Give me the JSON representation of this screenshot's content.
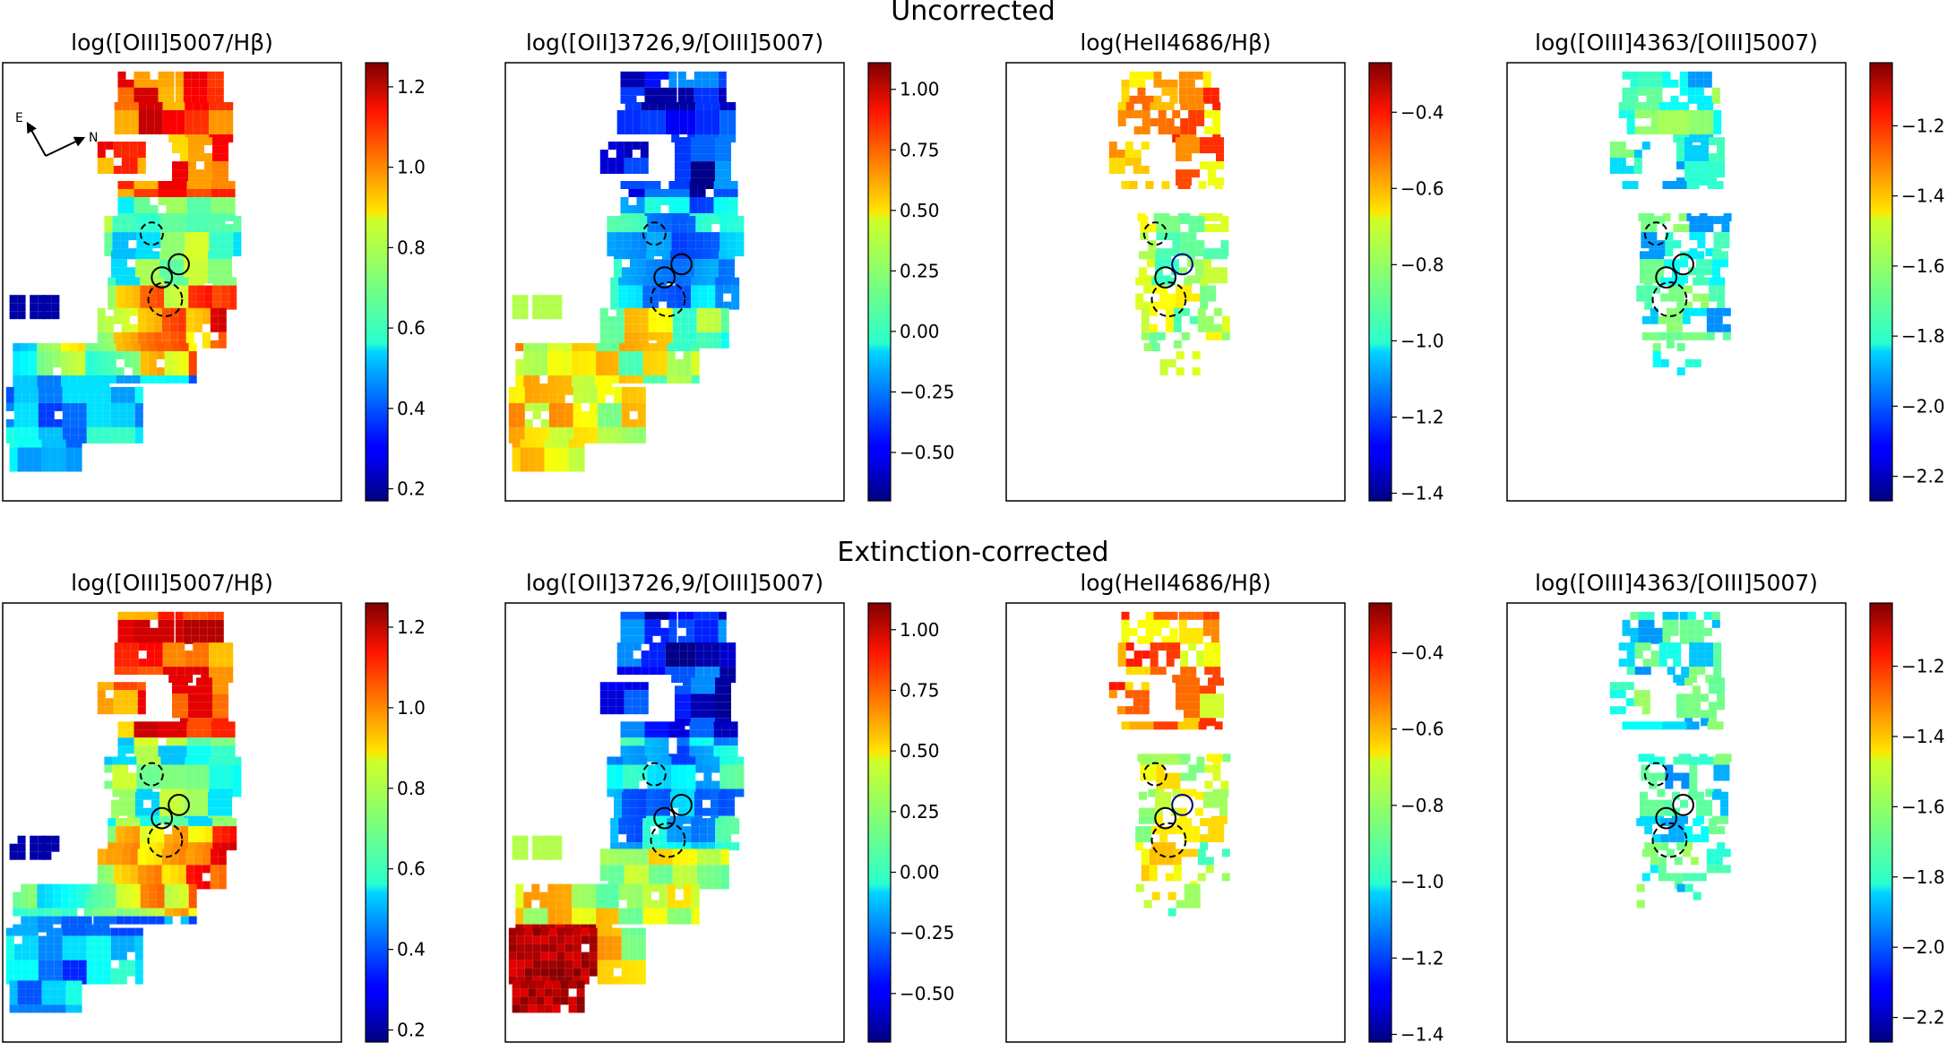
{
  "figure": {
    "rows": [
      {
        "title": "Uncorrected",
        "panels": [
          {
            "title": "log([OIII]5007/Hβ)",
            "colorbar_ticks": [
              "0.2",
              "0.4",
              "0.6",
              "0.8",
              "1.0",
              "1.2"
            ]
          },
          {
            "title": "log([OII]3726,9/[OIII]5007)",
            "colorbar_ticks": [
              "−0.50",
              "−0.25",
              "0.00",
              "0.25",
              "0.50",
              "0.75",
              "1.00"
            ]
          },
          {
            "title": "log(HeII4686/Hβ)",
            "colorbar_ticks": [
              "−1.4",
              "−1.2",
              "−1.0",
              "−0.8",
              "−0.6",
              "−0.4"
            ]
          },
          {
            "title": "log([OIII]4363/[OIII]5007)",
            "colorbar_ticks": [
              "−2.2",
              "−2.0",
              "−1.8",
              "−1.6",
              "−1.4",
              "−1.2"
            ]
          }
        ]
      },
      {
        "title": "Extinction-corrected",
        "panels": [
          {
            "title": "log([OIII]5007/Hβ)",
            "colorbar_ticks": [
              "0.2",
              "0.4",
              "0.6",
              "0.8",
              "1.0",
              "1.2"
            ]
          },
          {
            "title": "log([OII]3726,9/[OIII]5007)",
            "colorbar_ticks": [
              "−0.50",
              "−0.25",
              "0.00",
              "0.25",
              "0.50",
              "0.75",
              "1.00"
            ]
          },
          {
            "title": "log(HeII4686/Hβ)",
            "colorbar_ticks": [
              "−1.4",
              "−1.2",
              "−1.0",
              "−0.8",
              "−0.6",
              "−0.4"
            ]
          },
          {
            "title": "log([OIII]4363/[OIII]5007)",
            "colorbar_ticks": [
              "−2.2",
              "−2.0",
              "−1.8",
              "−1.6",
              "−1.4",
              "−1.2"
            ]
          }
        ]
      }
    ],
    "compass": {
      "east": "E",
      "north": "N"
    }
  },
  "chart_data": [
    {
      "type": "heatmap",
      "row": "Uncorrected",
      "title": "log([OIII]5007/Hβ)",
      "colormap": "jet",
      "colorbar_range": [
        0.17,
        1.26
      ],
      "colorbar_ticks": [
        0.2,
        0.4,
        0.6,
        0.8,
        1.0,
        1.2
      ]
    },
    {
      "type": "heatmap",
      "row": "Uncorrected",
      "title": "log([OII]3726,9/[OIII]5007)",
      "colormap": "jet",
      "colorbar_range": [
        -0.7,
        1.11
      ],
      "colorbar_ticks": [
        -0.5,
        -0.25,
        0.0,
        0.25,
        0.5,
        0.75,
        1.0
      ]
    },
    {
      "type": "heatmap",
      "row": "Uncorrected",
      "title": "log(HeII4686/Hβ)",
      "colormap": "jet",
      "colorbar_range": [
        -1.42,
        -0.27
      ],
      "colorbar_ticks": [
        -1.4,
        -1.2,
        -1.0,
        -0.8,
        -0.6,
        -0.4
      ]
    },
    {
      "type": "heatmap",
      "row": "Uncorrected",
      "title": "log([OIII]4363/[OIII]5007)",
      "colormap": "jet",
      "colorbar_range": [
        -2.27,
        -1.02
      ],
      "colorbar_ticks": [
        -2.2,
        -2.0,
        -1.8,
        -1.6,
        -1.4,
        -1.2
      ]
    },
    {
      "type": "heatmap",
      "row": "Extinction-corrected",
      "title": "log([OIII]5007/Hβ)",
      "colormap": "jet",
      "colorbar_range": [
        0.17,
        1.26
      ],
      "colorbar_ticks": [
        0.2,
        0.4,
        0.6,
        0.8,
        1.0,
        1.2
      ]
    },
    {
      "type": "heatmap",
      "row": "Extinction-corrected",
      "title": "log([OII]3726,9/[OIII]5007)",
      "colormap": "jet",
      "colorbar_range": [
        -0.7,
        1.11
      ],
      "colorbar_ticks": [
        -0.5,
        -0.25,
        0.0,
        0.25,
        0.5,
        0.75,
        1.0
      ]
    },
    {
      "type": "heatmap",
      "row": "Extinction-corrected",
      "title": "log(HeII4686/Hβ)",
      "colormap": "jet",
      "colorbar_range": [
        -1.42,
        -0.27
      ],
      "colorbar_ticks": [
        -1.4,
        -1.2,
        -1.0,
        -0.8,
        -0.6,
        -0.4
      ]
    },
    {
      "type": "heatmap",
      "row": "Extinction-corrected",
      "title": "log([OIII]4363/[OIII]5007)",
      "colormap": "jet",
      "colorbar_range": [
        -2.27,
        -1.02
      ],
      "colorbar_ticks": [
        -2.2,
        -2.0,
        -1.8,
        -1.6,
        -1.4,
        -1.2
      ]
    }
  ]
}
